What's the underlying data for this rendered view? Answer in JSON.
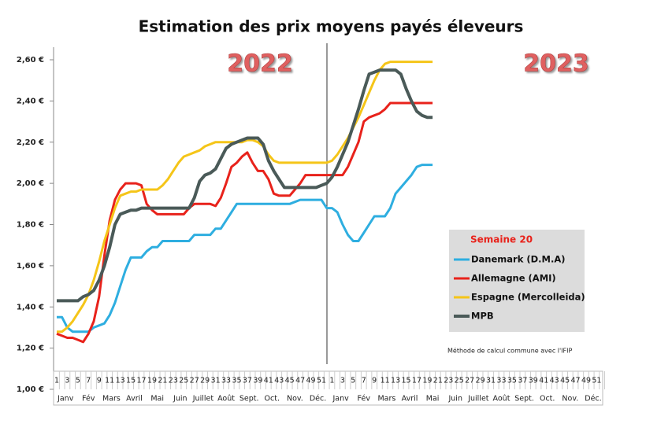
{
  "chart_data": {
    "type": "line",
    "title": "Estimation des prix moyens payés éleveurs",
    "annotations": [
      "2022",
      "2023"
    ],
    "legend_title": "Semaine 20",
    "note": "Méthode de calcul commune avec l'IFIP",
    "categories": [
      "1",
      null,
      "3",
      null,
      "5",
      null,
      "7",
      null,
      "9",
      null,
      "11",
      null,
      "13",
      null,
      "15",
      null,
      "17",
      null,
      "19",
      null,
      "21",
      null,
      "23",
      null,
      "25",
      null,
      "27",
      null,
      "29",
      null,
      "31",
      null,
      "33",
      null,
      "35",
      null,
      "37",
      null,
      "39",
      null,
      "41",
      null,
      "43",
      null,
      "45",
      null,
      "47",
      null,
      "49",
      null,
      "51",
      null,
      "1",
      null,
      "3",
      null,
      "5",
      null,
      "7",
      null,
      "9",
      null,
      "11",
      null,
      "13",
      null,
      "15",
      null,
      "17",
      null,
      "19",
      null,
      "21",
      null,
      "23",
      null,
      "25",
      null,
      "27",
      null,
      "29",
      null,
      "31",
      null,
      "33",
      null,
      "35",
      null,
      "37",
      null,
      "39",
      null,
      "41",
      null,
      "43",
      null,
      "45",
      null,
      "47",
      null,
      "49",
      null,
      "51",
      null
    ],
    "months": [
      "Janv",
      "Fév",
      "Mars",
      "Avril",
      "Mai",
      "Juin",
      "Juillet",
      "Août",
      "Sept.",
      "Oct.",
      "Nov.",
      "Déc.",
      "Janv",
      "Fév",
      "Mars",
      "Avril",
      "Mai",
      "Juin",
      "Juillet",
      "Août",
      "Sept.",
      "Oct.",
      "Nov.",
      "Déc."
    ],
    "ylim": [
      1.0,
      2.6
    ],
    "yticks": [
      {
        "value": 1.0,
        "label": "1,00 €"
      },
      {
        "value": 1.2,
        "label": "1,20 €"
      },
      {
        "value": 1.4,
        "label": "1,40 €"
      },
      {
        "value": 1.6,
        "label": "1,60 €"
      },
      {
        "value": 1.8,
        "label": "1,80 €"
      },
      {
        "value": 2.0,
        "label": "2,00 €"
      },
      {
        "value": 2.2,
        "label": "2,20 €"
      },
      {
        "value": 2.4,
        "label": "2,40 €"
      },
      {
        "value": 2.6,
        "label": "2,60 €"
      }
    ],
    "grid": false,
    "series": [
      {
        "name": "Danemark (D.M.A)",
        "color": "#2eaee0",
        "values": [
          1.35,
          1.35,
          1.3,
          1.28,
          1.28,
          1.28,
          1.28,
          1.3,
          1.31,
          1.32,
          1.36,
          1.42,
          1.5,
          1.58,
          1.64,
          1.64,
          1.64,
          1.67,
          1.69,
          1.69,
          1.72,
          1.72,
          1.72,
          1.72,
          1.72,
          1.72,
          1.75,
          1.75,
          1.75,
          1.75,
          1.78,
          1.78,
          1.82,
          1.86,
          1.9,
          1.9,
          1.9,
          1.9,
          1.9,
          1.9,
          1.9,
          1.9,
          1.9,
          1.9,
          1.9,
          1.91,
          1.92,
          1.92,
          1.92,
          1.92,
          1.92,
          1.88,
          1.88,
          1.86,
          1.8,
          1.75,
          1.72,
          1.72,
          1.76,
          1.8,
          1.84,
          1.84,
          1.84,
          1.88,
          1.95,
          1.98,
          2.01,
          2.04,
          2.08,
          2.09,
          2.09,
          2.09,
          null,
          null,
          null,
          null,
          null,
          null,
          null,
          null,
          null,
          null,
          null,
          null,
          null,
          null,
          null,
          null,
          null,
          null,
          null,
          null,
          null,
          null,
          null,
          null,
          null,
          null,
          null,
          null,
          null,
          null,
          null,
          null
        ]
      },
      {
        "name": "Allemagne (AMI)",
        "color": "#e8221b",
        "values": [
          1.27,
          1.26,
          1.25,
          1.25,
          1.24,
          1.23,
          1.27,
          1.33,
          1.45,
          1.65,
          1.82,
          1.92,
          1.97,
          2.0,
          2.0,
          2.0,
          1.99,
          1.9,
          1.87,
          1.85,
          1.85,
          1.85,
          1.85,
          1.85,
          1.85,
          1.88,
          1.9,
          1.9,
          1.9,
          1.9,
          1.89,
          1.93,
          2.0,
          2.08,
          2.1,
          2.13,
          2.15,
          2.1,
          2.06,
          2.06,
          2.02,
          1.95,
          1.94,
          1.94,
          1.94,
          1.97,
          2.0,
          2.04,
          2.04,
          2.04,
          2.04,
          2.04,
          2.04,
          2.04,
          2.04,
          2.08,
          2.14,
          2.2,
          2.3,
          2.32,
          2.33,
          2.34,
          2.36,
          2.39,
          2.39,
          2.39,
          2.39,
          2.39,
          2.39,
          2.39,
          2.39,
          2.39,
          null,
          null,
          null,
          null,
          null,
          null,
          null,
          null,
          null,
          null,
          null,
          null,
          null,
          null,
          null,
          null,
          null,
          null,
          null,
          null,
          null,
          null,
          null,
          null,
          null,
          null,
          null,
          null,
          null,
          null,
          null,
          null
        ]
      },
      {
        "name": "Espagne (Mercolleida)",
        "color": "#f5c518",
        "values": [
          1.28,
          1.28,
          1.3,
          1.33,
          1.37,
          1.41,
          1.46,
          1.53,
          1.62,
          1.72,
          1.8,
          1.88,
          1.94,
          1.95,
          1.96,
          1.96,
          1.97,
          1.97,
          1.97,
          1.97,
          1.99,
          2.02,
          2.06,
          2.1,
          2.13,
          2.14,
          2.15,
          2.16,
          2.18,
          2.19,
          2.2,
          2.2,
          2.2,
          2.2,
          2.2,
          2.2,
          2.21,
          2.21,
          2.2,
          2.18,
          2.14,
          2.11,
          2.1,
          2.1,
          2.1,
          2.1,
          2.1,
          2.1,
          2.1,
          2.1,
          2.1,
          2.1,
          2.11,
          2.14,
          2.18,
          2.22,
          2.27,
          2.32,
          2.38,
          2.44,
          2.5,
          2.55,
          2.58,
          2.59,
          2.59,
          2.59,
          2.59,
          2.59,
          2.59,
          2.59,
          2.59,
          2.59,
          null,
          null,
          null,
          null,
          null,
          null,
          null,
          null,
          null,
          null,
          null,
          null,
          null,
          null,
          null,
          null,
          null,
          null,
          null,
          null,
          null,
          null,
          null,
          null,
          null,
          null,
          null,
          null,
          null,
          null,
          null,
          null
        ]
      },
      {
        "name": "MPB",
        "color": "#4a5a58",
        "values": [
          1.43,
          1.43,
          1.43,
          1.43,
          1.43,
          1.45,
          1.46,
          1.48,
          1.53,
          1.6,
          1.69,
          1.8,
          1.85,
          1.86,
          1.87,
          1.87,
          1.88,
          1.88,
          1.88,
          1.88,
          1.88,
          1.88,
          1.88,
          1.88,
          1.88,
          1.88,
          1.93,
          2.01,
          2.04,
          2.05,
          2.07,
          2.12,
          2.17,
          2.19,
          2.2,
          2.21,
          2.22,
          2.22,
          2.22,
          2.19,
          2.11,
          2.06,
          2.02,
          1.98,
          1.98,
          1.98,
          1.98,
          1.98,
          1.98,
          1.98,
          1.99,
          2.0,
          2.03,
          2.08,
          2.14,
          2.2,
          2.28,
          2.36,
          2.45,
          2.53,
          2.54,
          2.55,
          2.55,
          2.55,
          2.55,
          2.53,
          2.46,
          2.4,
          2.35,
          2.33,
          2.32,
          2.32,
          null,
          null,
          null,
          null,
          null,
          null,
          null,
          null,
          null,
          null,
          null,
          null,
          null,
          null,
          null,
          null,
          null,
          null,
          null,
          null,
          null,
          null,
          null,
          null,
          null,
          null,
          null,
          null,
          null,
          null,
          null,
          null
        ]
      }
    ]
  }
}
